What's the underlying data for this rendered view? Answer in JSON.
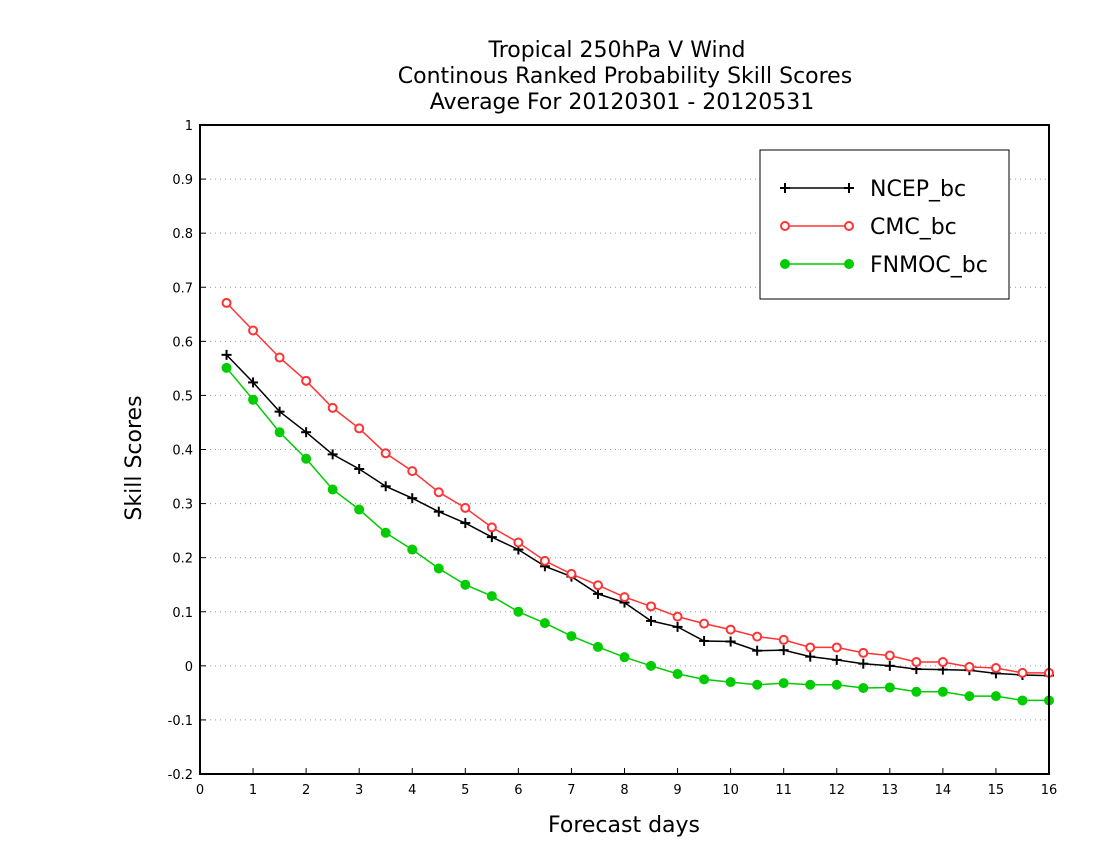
{
  "chart_data": {
    "type": "line",
    "title_lines": [
      "Tropical 250hPa V Wind",
      "Continous Ranked Probability Skill Scores",
      "Average For 20120301 - 20120531"
    ],
    "xlabel": "Forecast days",
    "ylabel": "Skill Scores",
    "xlim": [
      0,
      16
    ],
    "ylim": [
      -0.2,
      1
    ],
    "xticks": [
      0,
      1,
      2,
      3,
      4,
      5,
      6,
      7,
      8,
      9,
      10,
      11,
      12,
      13,
      14,
      15,
      16
    ],
    "yticks": [
      -0.2,
      -0.1,
      0,
      0.1,
      0.2,
      0.3,
      0.4,
      0.5,
      0.6,
      0.7,
      0.8,
      0.9,
      1
    ],
    "ytick_labels": [
      "-0.2",
      "-0.1",
      "0",
      "0.1",
      "0.2",
      "0.3",
      "0.4",
      "0.5",
      "0.6",
      "0.7",
      "0.8",
      "0.9",
      "1"
    ],
    "grid": "horizontal dotted",
    "legend_position": "top-right",
    "x": [
      0.5,
      1,
      1.5,
      2,
      2.5,
      3,
      3.5,
      4,
      4.5,
      5,
      5.5,
      6,
      6.5,
      7,
      7.5,
      8,
      8.5,
      9,
      9.5,
      10,
      10.5,
      11,
      11.5,
      12,
      12.5,
      13,
      13.5,
      14,
      14.5,
      15,
      15.5,
      16
    ],
    "series": [
      {
        "name": "NCEP_bc",
        "color": "#000000",
        "marker": "plus",
        "values": [
          0.575,
          0.524,
          0.47,
          0.432,
          0.391,
          0.364,
          0.332,
          0.31,
          0.285,
          0.264,
          0.238,
          0.215,
          0.184,
          0.165,
          0.133,
          0.117,
          0.083,
          0.072,
          0.046,
          0.045,
          0.028,
          0.029,
          0.017,
          0.011,
          0.004,
          0.0,
          -0.006,
          -0.007,
          -0.008,
          -0.014,
          -0.017,
          -0.018
        ]
      },
      {
        "name": "CMC_bc",
        "color": "#ff3333",
        "marker": "open-circle",
        "values": [
          0.671,
          0.62,
          0.57,
          0.527,
          0.477,
          0.439,
          0.393,
          0.36,
          0.321,
          0.292,
          0.256,
          0.228,
          0.194,
          0.17,
          0.149,
          0.127,
          0.11,
          0.091,
          0.078,
          0.067,
          0.054,
          0.048,
          0.034,
          0.034,
          0.024,
          0.019,
          0.007,
          0.007,
          -0.002,
          -0.004,
          -0.013,
          -0.013
        ]
      },
      {
        "name": "FNMOC_bc",
        "color": "#00cc00",
        "marker": "filled-circle",
        "values": [
          0.551,
          0.492,
          0.432,
          0.383,
          0.326,
          0.289,
          0.246,
          0.215,
          0.18,
          0.15,
          0.129,
          0.1,
          0.079,
          0.055,
          0.035,
          0.016,
          0.0,
          -0.015,
          -0.025,
          -0.03,
          -0.035,
          -0.032,
          -0.035,
          -0.035,
          -0.041,
          -0.04,
          -0.048,
          -0.048,
          -0.056,
          -0.056,
          -0.064,
          -0.064
        ]
      }
    ]
  }
}
